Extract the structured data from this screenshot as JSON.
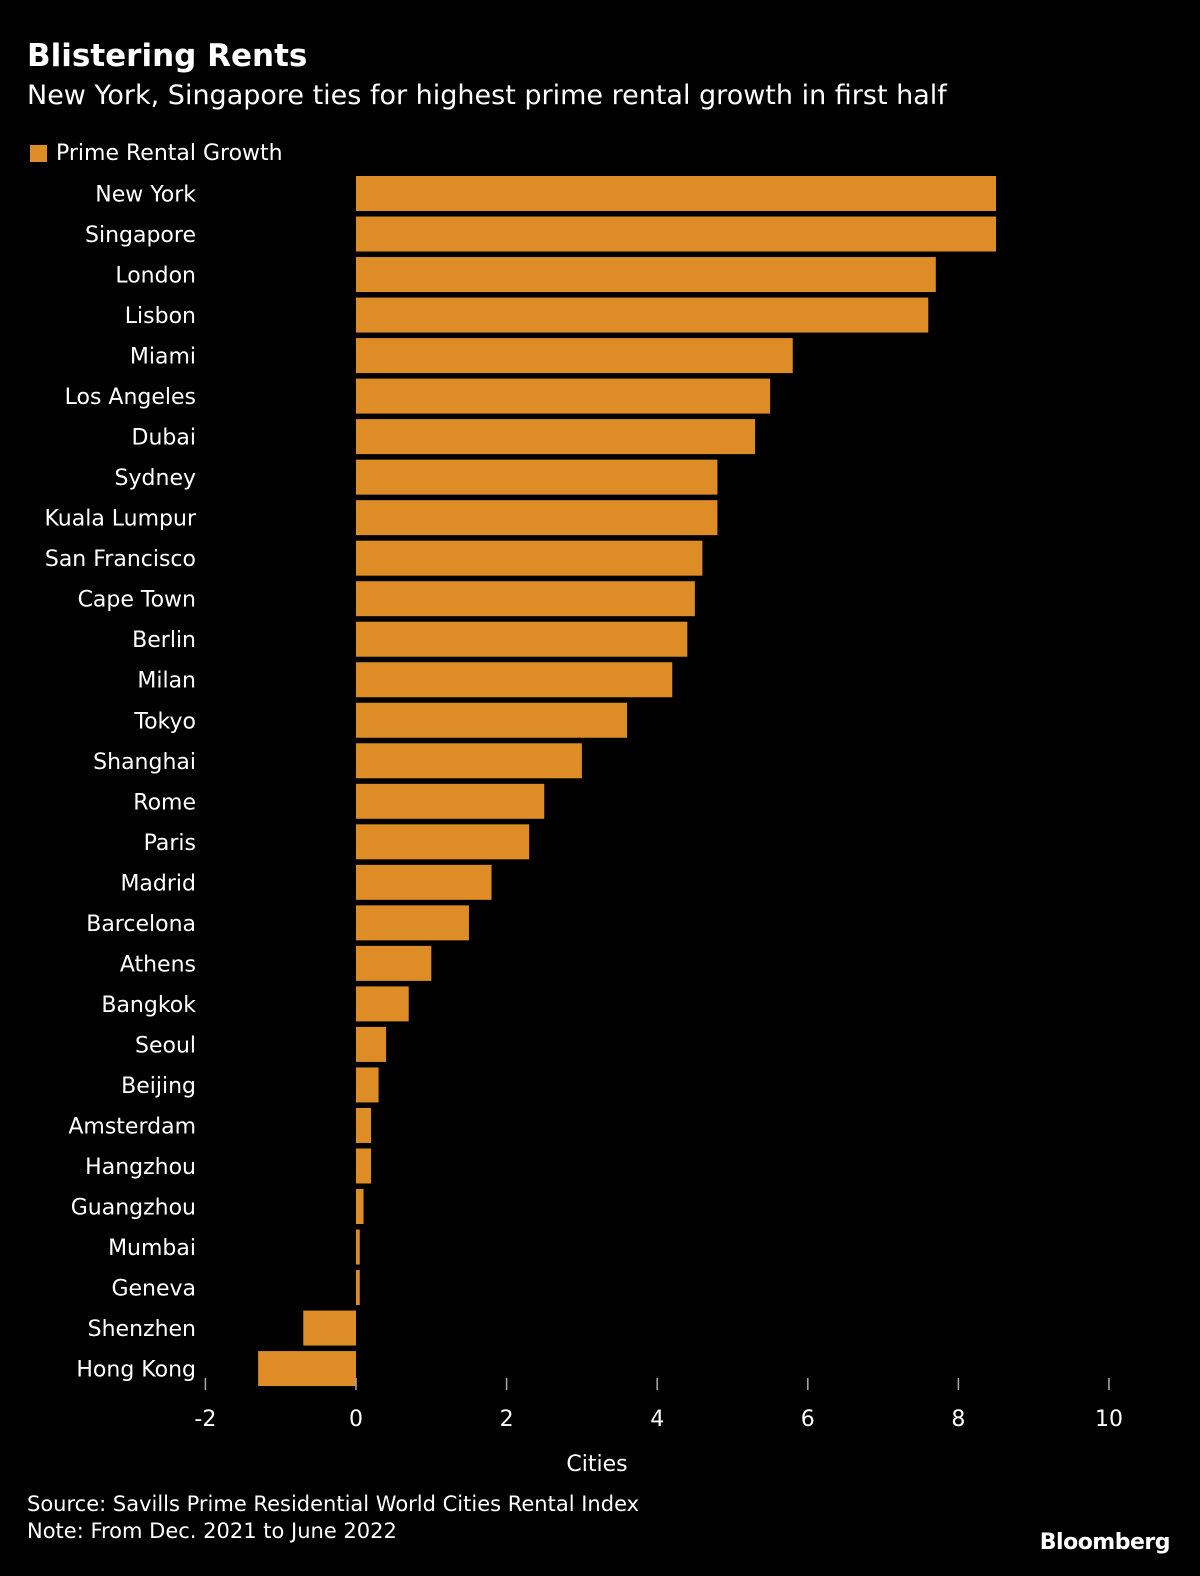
{
  "header": {
    "title": "Blistering Rents",
    "subtitle": "New York, Singapore ties for highest prime rental growth in first half"
  },
  "footer": {
    "source": "Source: Savills Prime Residential World Cities Rental Index",
    "note": "Note: From Dec. 2021 to June 2022",
    "logo": "Bloomberg"
  },
  "chart_data": {
    "type": "bar",
    "orientation": "horizontal",
    "title": "Blistering Rents",
    "subtitle": "New York, Singapore ties for highest prime rental growth in first half",
    "xlabel": "Cities",
    "ylabel": "",
    "xlim": [
      -2,
      10
    ],
    "xticks": [
      -2,
      0,
      2,
      4,
      6,
      8,
      10
    ],
    "grid": false,
    "legend_position": "top-left",
    "bar_color": "#DE8C25",
    "categories": [
      "New York",
      "Singapore",
      "London",
      "Lisbon",
      "Miami",
      "Los Angeles",
      "Dubai",
      "Sydney",
      "Kuala Lumpur",
      "San Francisco",
      "Cape Town",
      "Berlin",
      "Milan",
      "Tokyo",
      "Shanghai",
      "Rome",
      "Paris",
      "Madrid",
      "Barcelona",
      "Athens",
      "Bangkok",
      "Seoul",
      "Beijing",
      "Amsterdam",
      "Hangzhou",
      "Guangzhou",
      "Mumbai",
      "Geneva",
      "Shenzhen",
      "Hong Kong"
    ],
    "series": [
      {
        "name": "Prime Rental Growth",
        "values": [
          8.5,
          8.5,
          7.7,
          7.6,
          5.8,
          5.5,
          5.3,
          4.8,
          4.8,
          4.6,
          4.5,
          4.4,
          4.2,
          3.6,
          3.0,
          2.5,
          2.3,
          1.8,
          1.5,
          1.0,
          0.7,
          0.4,
          0.3,
          0.2,
          0.2,
          0.1,
          0.05,
          0.05,
          -0.7,
          -1.3
        ]
      }
    ]
  }
}
